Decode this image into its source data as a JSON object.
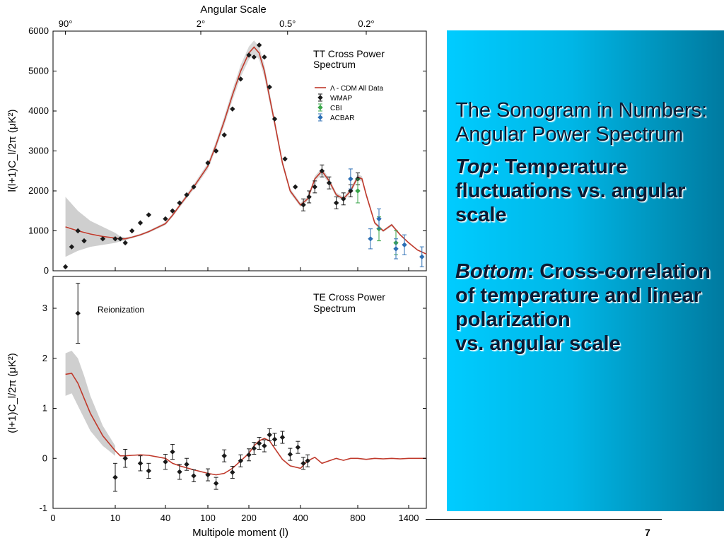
{
  "slide": {
    "heading": "The Sonogram in Numbers:\nAngular Power Spectrum",
    "top_label": "Top",
    "top_text": ": Temperature fluctuations vs. angular scale",
    "bottom_label": "Bottom",
    "bottom_text": ": Cross-correlation of temperature and linear polarization\nvs. angular scale",
    "page_number": "7",
    "panel_gradient": [
      "#00ccff",
      "#007aa0"
    ]
  },
  "chart_data": [
    {
      "type": "line",
      "title": "TT Cross Power Spectrum",
      "ylabel": "l(l+1)C_l/2π (μK²)",
      "top_axis_title": "Angular Scale",
      "top_ticks": [
        {
          "label": "90°",
          "l": 2
        },
        {
          "label": "2°",
          "l": 90
        },
        {
          "label": "0.5°",
          "l": 350
        },
        {
          "label": "0.2°",
          "l": 900
        }
      ],
      "yticks": [
        0,
        1000,
        2000,
        3000,
        4000,
        5000,
        6000
      ],
      "ylim": [
        0,
        6000
      ],
      "legend": [
        "Λ - CDM All Data",
        "WMAP",
        "CBI",
        "ACBAR"
      ],
      "series_colors": {
        "model": "#c0392b",
        "WMAP": "#1a1a1a",
        "CBI": "#3aa64a",
        "ACBAR": "#2c6fb5"
      },
      "model": {
        "l": [
          2,
          4,
          6,
          8,
          10,
          13,
          16,
          20,
          25,
          30,
          40,
          50,
          60,
          80,
          100,
          120,
          140,
          160,
          180,
          200,
          220,
          240,
          260,
          280,
          300,
          330,
          360,
          400,
          450,
          500,
          550,
          600,
          650,
          700,
          750,
          800,
          850,
          900,
          1000,
          1100,
          1200,
          1300,
          1400,
          1500,
          1600
        ],
        "value": [
          1100,
          1000,
          920,
          860,
          820,
          800,
          800,
          840,
          900,
          980,
          1180,
          1390,
          1630,
          2100,
          2620,
          3150,
          3750,
          4400,
          5000,
          5450,
          5600,
          5450,
          5000,
          4350,
          3700,
          2700,
          2000,
          1650,
          1800,
          2300,
          2500,
          2250,
          1900,
          1800,
          2000,
          2350,
          2300,
          1900,
          1200,
          1000,
          1150,
          900,
          700,
          520,
          420
        ]
      },
      "error_band": {
        "l": [
          2,
          4,
          6,
          10,
          13,
          16,
          20
        ],
        "upper": [
          1850,
          1500,
          1250,
          950,
          860,
          840,
          860
        ],
        "lower": [
          350,
          500,
          600,
          700,
          740,
          760,
          820
        ]
      },
      "series": [
        {
          "name": "WMAP",
          "points": [
            {
              "l": 2,
              "v": 100
            },
            {
              "l": 3,
              "v": 600
            },
            {
              "l": 4,
              "v": 1000
            },
            {
              "l": 5,
              "v": 750
            },
            {
              "l": 8,
              "v": 800
            },
            {
              "l": 10,
              "v": 800
            },
            {
              "l": 13,
              "v": 800
            },
            {
              "l": 16,
              "v": 700
            },
            {
              "l": 20,
              "v": 1000
            },
            {
              "l": 25,
              "v": 1200
            },
            {
              "l": 30,
              "v": 1400
            },
            {
              "l": 40,
              "v": 1300
            },
            {
              "l": 50,
              "v": 1500
            },
            {
              "l": 60,
              "v": 1700
            },
            {
              "l": 70,
              "v": 1900
            },
            {
              "l": 80,
              "v": 2100
            },
            {
              "l": 100,
              "v": 2700
            },
            {
              "l": 120,
              "v": 3000
            },
            {
              "l": 140,
              "v": 3400
            },
            {
              "l": 160,
              "v": 4050
            },
            {
              "l": 180,
              "v": 4800
            },
            {
              "l": 200,
              "v": 5400
            },
            {
              "l": 220,
              "v": 5350
            },
            {
              "l": 240,
              "v": 5650
            },
            {
              "l": 260,
              "v": 5350
            },
            {
              "l": 280,
              "v": 4600
            },
            {
              "l": 300,
              "v": 3800
            },
            {
              "l": 340,
              "v": 2800
            },
            {
              "l": 380,
              "v": 2100
            },
            {
              "l": 420,
              "v": 1650
            },
            {
              "l": 460,
              "v": 1850
            },
            {
              "l": 500,
              "v": 2100
            },
            {
              "l": 550,
              "v": 2500
            },
            {
              "l": 600,
              "v": 2200
            },
            {
              "l": 650,
              "v": 1700
            },
            {
              "l": 700,
              "v": 1800
            },
            {
              "l": 750,
              "v": 2000
            },
            {
              "l": 800,
              "v": 2300
            }
          ]
        },
        {
          "name": "CBI",
          "points": [
            {
              "l": 800,
              "v": 2000
            },
            {
              "l": 1050,
              "v": 1050
            },
            {
              "l": 1250,
              "v": 700
            }
          ]
        },
        {
          "name": "ACBAR",
          "points": [
            {
              "l": 750,
              "v": 2300
            },
            {
              "l": 950,
              "v": 800
            },
            {
              "l": 1050,
              "v": 1300
            },
            {
              "l": 1250,
              "v": 550
            },
            {
              "l": 1350,
              "v": 650
            },
            {
              "l": 1550,
              "v": 350
            }
          ]
        }
      ]
    },
    {
      "type": "line",
      "title": "TE Cross Power Spectrum",
      "ylabel": "(l+1)C_l/2π (μK²)",
      "xlabel": "Multipole moment (l)",
      "xticks": [
        0,
        10,
        40,
        100,
        200,
        400,
        800,
        1400
      ],
      "yticks": [
        -1,
        0,
        1,
        2,
        3
      ],
      "ylim": [
        -1,
        3.6
      ],
      "annotation": "Reionization",
      "model": {
        "l": [
          2,
          3,
          4,
          5,
          6,
          8,
          10,
          13,
          16,
          20,
          25,
          30,
          40,
          50,
          60,
          80,
          100,
          120,
          140,
          160,
          180,
          200,
          220,
          240,
          260,
          280,
          300,
          330,
          360,
          400,
          450,
          500,
          550,
          600,
          650,
          700,
          750,
          800,
          900,
          1000,
          1100,
          1200,
          1300,
          1400,
          1600
        ],
        "value": [
          1.68,
          1.7,
          1.5,
          1.2,
          0.9,
          0.45,
          0.15,
          0.05,
          0.05,
          0.06,
          0.07,
          0.06,
          0.0,
          -0.1,
          -0.15,
          -0.23,
          -0.3,
          -0.33,
          -0.3,
          -0.2,
          -0.05,
          0.1,
          0.25,
          0.35,
          0.4,
          0.35,
          0.2,
          -0.02,
          -0.15,
          -0.2,
          -0.05,
          0.02,
          -0.1,
          -0.05,
          0.0,
          -0.04,
          0.0,
          0.0,
          -0.02,
          0.0,
          -0.01,
          0.0,
          -0.01,
          0.0,
          0.0
        ]
      },
      "error_band": {
        "l": [
          2,
          3,
          4,
          5,
          6,
          8,
          10
        ],
        "upper": [
          2.1,
          2.15,
          2.0,
          1.65,
          1.25,
          0.65,
          0.25
        ],
        "lower": [
          1.25,
          1.3,
          1.05,
          0.8,
          0.55,
          0.25,
          0.05
        ]
      },
      "points": [
        {
          "l": 4,
          "v": 2.9,
          "err": 0.6
        },
        {
          "l": 10,
          "v": -0.38,
          "err": 0.28
        },
        {
          "l": 16,
          "v": 0.0,
          "err": 0.18
        },
        {
          "l": 25,
          "v": -0.1,
          "err": 0.15
        },
        {
          "l": 30,
          "v": -0.25,
          "err": 0.15
        },
        {
          "l": 40,
          "v": -0.07,
          "err": 0.15
        },
        {
          "l": 50,
          "v": 0.13,
          "err": 0.15
        },
        {
          "l": 60,
          "v": -0.27,
          "err": 0.15
        },
        {
          "l": 70,
          "v": -0.12,
          "err": 0.12
        },
        {
          "l": 80,
          "v": -0.35,
          "err": 0.12
        },
        {
          "l": 100,
          "v": -0.33,
          "err": 0.12
        },
        {
          "l": 120,
          "v": -0.5,
          "err": 0.12
        },
        {
          "l": 140,
          "v": 0.05,
          "err": 0.12
        },
        {
          "l": 160,
          "v": -0.28,
          "err": 0.12
        },
        {
          "l": 180,
          "v": -0.05,
          "err": 0.12
        },
        {
          "l": 200,
          "v": 0.07,
          "err": 0.12
        },
        {
          "l": 220,
          "v": 0.2,
          "err": 0.12
        },
        {
          "l": 240,
          "v": 0.3,
          "err": 0.12
        },
        {
          "l": 260,
          "v": 0.25,
          "err": 0.12
        },
        {
          "l": 280,
          "v": 0.47,
          "err": 0.12
        },
        {
          "l": 300,
          "v": 0.38,
          "err": 0.12
        },
        {
          "l": 330,
          "v": 0.42,
          "err": 0.12
        },
        {
          "l": 360,
          "v": 0.08,
          "err": 0.12
        },
        {
          "l": 390,
          "v": 0.22,
          "err": 0.12
        },
        {
          "l": 420,
          "v": -0.1,
          "err": 0.12
        },
        {
          "l": 450,
          "v": -0.05,
          "err": 0.12
        }
      ]
    }
  ]
}
